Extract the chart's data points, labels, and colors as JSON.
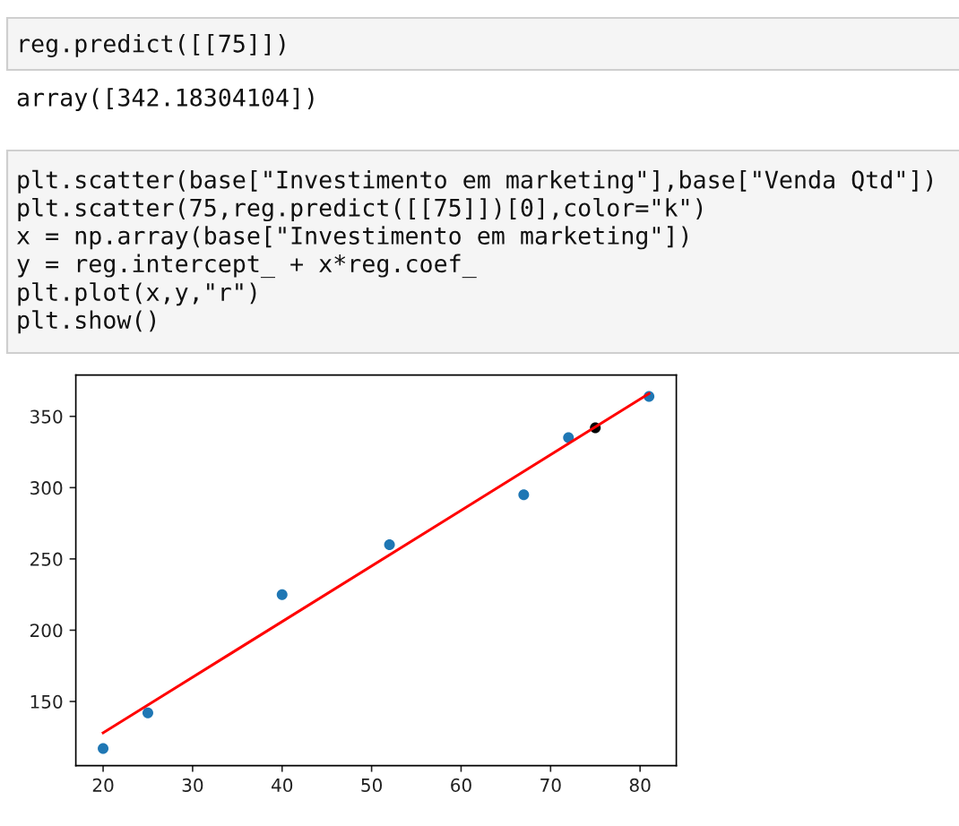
{
  "chart_data": {
    "type": "scatter",
    "annotations": [
      "reg.predict([[75]])",
      "array([342.18304104])",
      "plt.scatter(base[\"Investimento em marketing\"],base[\"Venda Qtd\"])\nplt.scatter(75,reg.predict([[75]])[0],color=\"k\")\nx = np.array(base[\"Investimento em marketing\"])\ny = reg.intercept_ + x*reg.coef_\nplt.plot(x,y,\"r\")\nplt.show()"
    ],
    "marker": "circle",
    "series": [
      {
        "color": "#1f77b4",
        "x": [
          20,
          25,
          40,
          52,
          67,
          72,
          81
        ],
        "values": [
          117,
          142,
          225,
          260,
          295,
          335,
          364
        ]
      },
      {
        "color": "#000000",
        "x": [
          75
        ],
        "values": [
          342
        ]
      },
      {
        "type": "line",
        "color": "#ff0000",
        "marker": "none",
        "line_style": "solid",
        "x": [
          20,
          81
        ],
        "values": [
          128,
          366
        ]
      }
    ],
    "xlim": [
      16.95,
      84.05
    ],
    "ylim": [
      105,
      379
    ],
    "xticks": [
      20,
      30,
      40,
      50,
      60,
      70,
      80
    ],
    "yticks": [
      150,
      200,
      250,
      300,
      350
    ]
  }
}
